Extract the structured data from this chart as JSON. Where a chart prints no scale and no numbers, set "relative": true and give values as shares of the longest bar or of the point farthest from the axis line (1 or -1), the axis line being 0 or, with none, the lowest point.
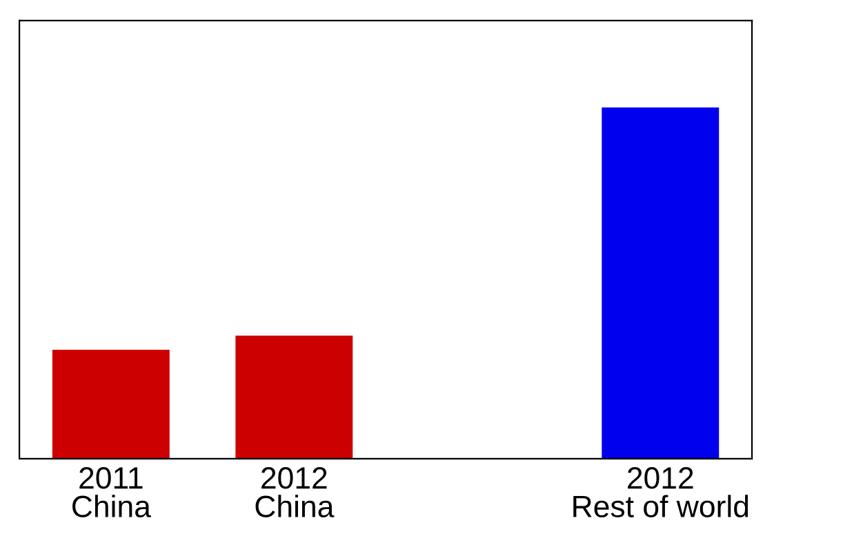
{
  "chart_data": {
    "type": "bar",
    "relative": true,
    "categories": [
      "2011\nChina",
      "2012\nChina",
      null,
      "2012\nRest of world"
    ],
    "values": [
      0.31,
      0.35,
      null,
      1
    ],
    "colors": [
      "#cc0000",
      "#cc0000",
      "#cc0000",
      "#0000ee"
    ],
    "grid": false,
    "legend": false
  }
}
